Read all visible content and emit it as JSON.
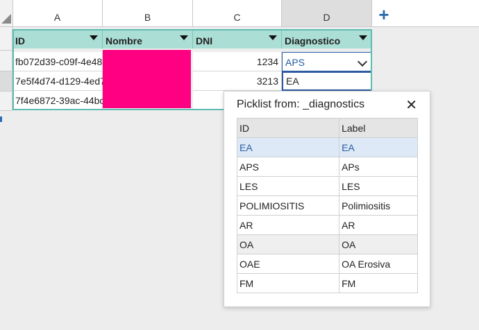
{
  "columns": {
    "a": "A",
    "b": "B",
    "c": "C",
    "d": "D",
    "add_icon": "plus-icon"
  },
  "table": {
    "headers": [
      "ID",
      "Nombre",
      "DNI",
      "Diagnostico"
    ],
    "rows": [
      {
        "id": "fb072d39-c09f-4e48-",
        "dni": "1234",
        "diag": "APS"
      },
      {
        "id": "7e5f4d74-d129-4ed7",
        "dni": "3213",
        "diag": "EA"
      },
      {
        "id": "7f4e6872-39ac-44bc",
        "dni": "",
        "diag": ""
      }
    ],
    "nombre_color": "#ff0082",
    "header_color": "#abded5"
  },
  "editor": {
    "value": "EA"
  },
  "picklist": {
    "title": "Picklist from: _diagnostics",
    "close_icon": "close-icon",
    "headers": [
      "ID",
      "Label"
    ],
    "items": [
      {
        "id": "EA",
        "label": "EA"
      },
      {
        "id": "APS",
        "label": "APs"
      },
      {
        "id": "LES",
        "label": "LES"
      },
      {
        "id": "POLIMIOSITIS",
        "label": "Polimiositis"
      },
      {
        "id": "AR",
        "label": "AR"
      },
      {
        "id": "OA",
        "label": "OA"
      },
      {
        "id": "OAE",
        "label": "OA Erosiva"
      },
      {
        "id": "FM",
        "label": "FM"
      }
    ],
    "selected_index": 0
  }
}
